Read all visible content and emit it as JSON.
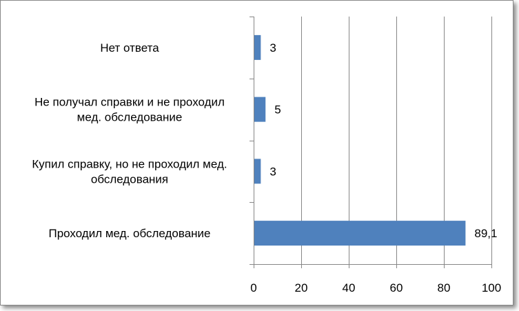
{
  "chart_data": {
    "type": "bar",
    "orientation": "horizontal",
    "categories": [
      "Проходил мед. обследование",
      "Купил справку, но не проходил мед. обследования",
      "Не получал справки и не проходил мед. обследование",
      "Нет ответа"
    ],
    "category_lines": [
      [
        "Проходил мед. обследование"
      ],
      [
        "Купил справку, но не проходил мед.",
        "обследования"
      ],
      [
        "Не получал справки и не проходил",
        "мед. обследование"
      ],
      [
        "Нет ответа"
      ]
    ],
    "values": [
      89.1,
      3,
      5,
      3
    ],
    "data_labels": [
      "89,1",
      "3",
      "5",
      "3"
    ],
    "xlim": [
      0,
      100
    ],
    "xticks": [
      0,
      20,
      40,
      60,
      80,
      100
    ],
    "xtick_labels": [
      "0",
      "20",
      "40",
      "60",
      "80",
      "100"
    ],
    "title": "",
    "xlabel": "",
    "ylabel": "",
    "grid": "vertical",
    "legend": "none",
    "bar_color": "#4F81BD",
    "grid_color": "#868686"
  }
}
